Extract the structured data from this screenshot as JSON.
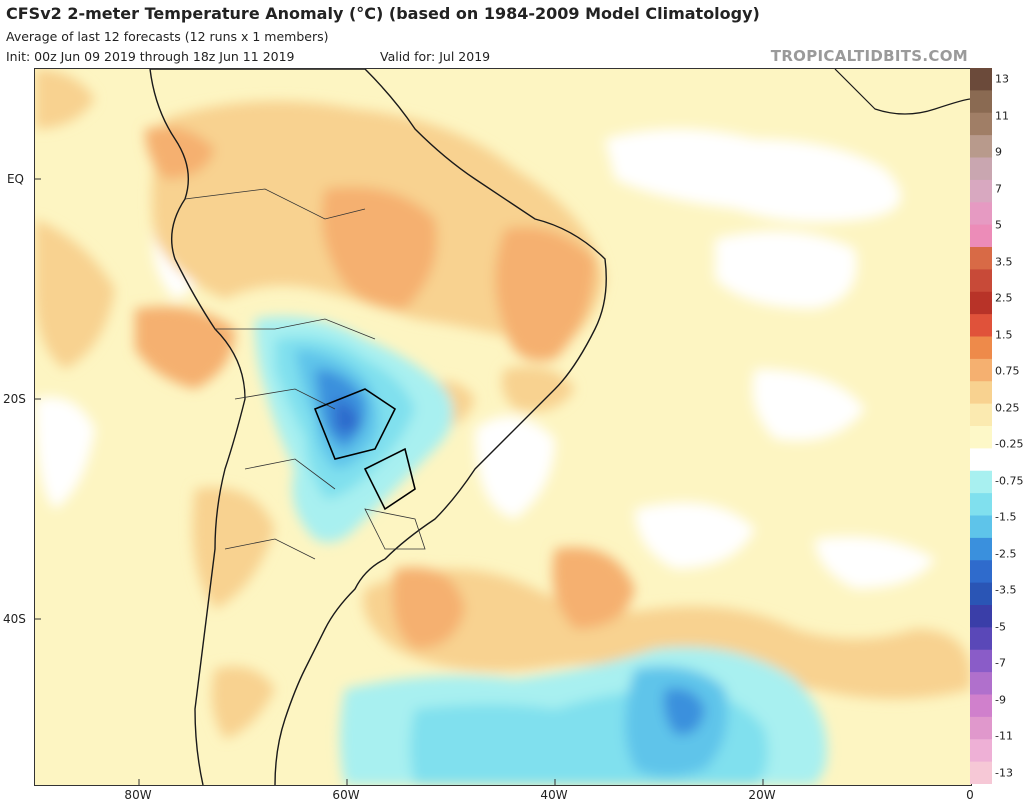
{
  "header": {
    "title": "CFSv2 2-meter Temperature Anomaly (°C) (based on 1984-2009 Model Climatology)",
    "subtitle": "Average of last 12 forecasts (12 runs x 1 members)",
    "init": "Init: 00z Jun 09 2019 through 18z Jun 11 2019",
    "valid": "Valid for: Jul 2019",
    "source": "TROPICALTIDBITS.COM"
  },
  "axes": {
    "lat_labels": [
      "EQ",
      "20S",
      "40S"
    ],
    "lon_labels": [
      "80W",
      "60W",
      "40W",
      "20W",
      "0"
    ]
  },
  "colorbar": {
    "labels": [
      "13",
      "11",
      "9",
      "7",
      "5",
      "3.5",
      "2.5",
      "1.5",
      "0.75",
      "0.25",
      "-0.25",
      "-0.75",
      "-1.5",
      "-2.5",
      "-3.5",
      "-5",
      "-7",
      "-9",
      "-11",
      "-13"
    ],
    "colors": [
      "#6b4a3a",
      "#8a6a52",
      "#a07e66",
      "#b89a8c",
      "#c9a6b0",
      "#d8a8c0",
      "#e69ac2",
      "#ec8cb8",
      "#d86a46",
      "#c84a38",
      "#b83328",
      "#e0523a",
      "#ee8a4a",
      "#f5b070",
      "#f8d290",
      "#fbeab0",
      "#fdf8c8",
      "#ffffff",
      "#a8f0f0",
      "#80e0ee",
      "#5ec4ea",
      "#3a90dd",
      "#2f6bcc",
      "#2a55b5",
      "#3a3ea8",
      "#5a48b8",
      "#8a5cc8",
      "#b070cc",
      "#d080cc",
      "#e098cc",
      "#eeb0d6",
      "#f6c8d6"
    ]
  },
  "map_data": {
    "variable": "2-meter Temperature Anomaly",
    "units": "°C",
    "region": "South America and South Atlantic",
    "features": [
      {
        "name": "warm-anomaly-south-atlantic",
        "value_range": "0.75 to 2.5"
      },
      {
        "name": "cold-anomaly-central-south-america",
        "value_range": "-0.75 to -3.5"
      },
      {
        "name": "cold-anomaly-southern-ocean",
        "value_range": "-0.25 to -1.5"
      }
    ]
  }
}
